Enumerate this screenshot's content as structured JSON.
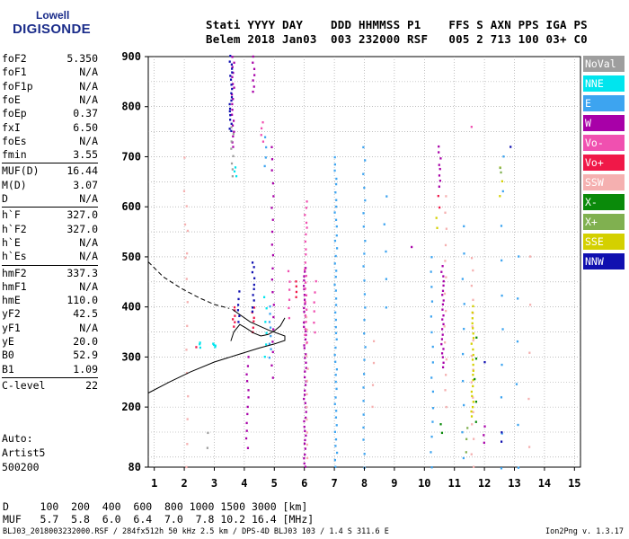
{
  "logo": {
    "line1": "Lowell",
    "line2": "DIGISONDE"
  },
  "header": {
    "labels": [
      "Stati",
      "YYYY",
      "DAY",
      "DDD",
      "HHMMSS",
      "P1",
      "FFS",
      "S",
      "AXN",
      "PPS",
      "IGA",
      "PS"
    ],
    "values": [
      "Belem",
      "2018",
      "Jan03",
      "003",
      "232000",
      "RSF",
      "005",
      "2",
      "713",
      "100",
      "03+",
      "C0"
    ]
  },
  "params": [
    {
      "name": "foF2",
      "value": "5.350"
    },
    {
      "name": "foF1",
      "value": "N/A"
    },
    {
      "name": "foF1p",
      "value": "N/A"
    },
    {
      "name": "foE",
      "value": "N/A"
    },
    {
      "name": "foEp",
      "value": "0.37"
    },
    {
      "name": "fxI",
      "value": "6.50"
    },
    {
      "name": "foEs",
      "value": "N/A"
    },
    {
      "name": "fmin",
      "value": "3.55"
    },
    {
      "name": "MUF(D)",
      "value": "16.44",
      "sep": true
    },
    {
      "name": "M(D)",
      "value": "3.07"
    },
    {
      "name": "D",
      "value": "N/A"
    },
    {
      "name": "h`F",
      "value": "327.0",
      "sep": true
    },
    {
      "name": "h`F2",
      "value": "327.0"
    },
    {
      "name": "h`E",
      "value": "N/A"
    },
    {
      "name": "h`Es",
      "value": "N/A"
    },
    {
      "name": "hmF2",
      "value": "337.3",
      "sep": true
    },
    {
      "name": "hmF1",
      "value": "N/A"
    },
    {
      "name": "hmE",
      "value": "110.0"
    },
    {
      "name": "yF2",
      "value": "42.5"
    },
    {
      "name": "yF1",
      "value": "N/A"
    },
    {
      "name": "yE",
      "value": "20.0"
    },
    {
      "name": "B0",
      "value": "52.9"
    },
    {
      "name": "B1",
      "value": "1.09"
    },
    {
      "name": "C-level",
      "value": "22",
      "sep": true
    }
  ],
  "auto": {
    "line1": "Auto:",
    "line2": "Artist5",
    "line3": "500200"
  },
  "legend": [
    {
      "label": "NoVal",
      "color": "#9e9e9e"
    },
    {
      "label": "NNE",
      "color": "#00e5ee"
    },
    {
      "label": "E",
      "color": "#3da4f0"
    },
    {
      "label": "W",
      "color": "#a800a8"
    },
    {
      "label": "Vo-",
      "color": "#f050b0"
    },
    {
      "label": "Vo+",
      "color": "#f01848"
    },
    {
      "label": "SSW",
      "color": "#f5b0b0"
    },
    {
      "label": "X-",
      "color": "#0a8a0a"
    },
    {
      "label": "X+",
      "color": "#80b050"
    },
    {
      "label": "SSE",
      "color": "#d4d000"
    },
    {
      "label": "NNW",
      "color": "#1010b0"
    }
  ],
  "footer": {
    "d_line": "D     100  200  400  600  800 1000 1500 3000 [km]",
    "muf_line": "MUF   5.7  5.8  6.0  6.4  7.0  7.8 10.2 16.4 [MHz]",
    "file_line": "BLJ03_2018003232000.RSF / 284fx512h 50 kHz 2.5 km / DPS-4D BLJ03 103 / 1.4 S 311.6 E",
    "version": "Ion2Png v. 1.3.17"
  },
  "chart_data": {
    "type": "scatter",
    "title": "",
    "xlabel": "",
    "ylabel": "",
    "xlim": [
      0.8,
      15.2
    ],
    "ylim": [
      80,
      900
    ],
    "x_ticks": [
      1,
      2,
      3,
      4,
      5,
      6,
      7,
      8,
      9,
      10,
      11,
      12,
      13,
      14,
      15
    ],
    "y_ticks": [
      80,
      200,
      300,
      400,
      500,
      600,
      700,
      800,
      900
    ],
    "grid": true,
    "traces": [
      {
        "name": "profile",
        "style": "solid",
        "x": [
          0.8,
          1.5,
          2.2,
          3.0,
          3.8,
          4.5,
          5.0,
          5.35,
          5.35,
          4.8,
          4.2,
          3.6
        ],
        "y": [
          228,
          250,
          270,
          290,
          305,
          318,
          326,
          333,
          342,
          354,
          370,
          395
        ]
      },
      {
        "name": "extrapolation",
        "style": "dashed",
        "x": [
          0.8,
          1.3,
          1.9,
          2.5,
          3.0,
          3.5
        ],
        "y": [
          490,
          460,
          437,
          418,
          405,
          397
        ]
      },
      {
        "name": "trace",
        "style": "solid",
        "x": [
          3.55,
          3.65,
          3.85,
          4.05,
          4.3,
          4.55,
          4.8,
          5.0,
          5.2,
          5.35
        ],
        "y": [
          332,
          350,
          365,
          358,
          348,
          342,
          345,
          352,
          362,
          378
        ]
      }
    ],
    "points": [
      {
        "s": "W",
        "x": 3.62,
        "y0": 720,
        "y1": 900,
        "n": 18
      },
      {
        "s": "W",
        "x": 4.3,
        "y0": 830,
        "y1": 900,
        "n": 7
      },
      {
        "s": "W",
        "x": 6.02,
        "y0": 80,
        "y1": 480,
        "n": 45
      },
      {
        "s": "W",
        "x": 10.6,
        "y0": 280,
        "y1": 480,
        "n": 22
      },
      {
        "s": "W",
        "x": 10.5,
        "y0": 640,
        "y1": 720,
        "n": 8
      },
      {
        "s": "W",
        "x": 4.95,
        "y0": 260,
        "y1": 720,
        "n": 20
      },
      {
        "s": "W",
        "x": 4.1,
        "y0": 120,
        "y1": 300,
        "n": 12
      },
      {
        "s": "W",
        "x": 12.0,
        "y0": 130,
        "y1": 160,
        "n": 3
      },
      {
        "s": "W",
        "x": 9.55,
        "y0": 520,
        "y1": 525,
        "n": 1
      },
      {
        "s": "E",
        "x": 7.05,
        "y0": 80,
        "y1": 700,
        "n": 45
      },
      {
        "s": "E",
        "x": 8.0,
        "y0": 80,
        "y1": 720,
        "n": 25
      },
      {
        "s": "E",
        "x": 10.25,
        "y0": 80,
        "y1": 500,
        "n": 15
      },
      {
        "s": "E",
        "x": 11.3,
        "y0": 100,
        "y1": 560,
        "n": 10
      },
      {
        "s": "E",
        "x": 12.6,
        "y0": 80,
        "y1": 700,
        "n": 10
      },
      {
        "s": "E",
        "x": 13.1,
        "y0": 80,
        "y1": 500,
        "n": 6
      },
      {
        "s": "E",
        "x": 4.7,
        "y0": 680,
        "y1": 740,
        "n": 4
      },
      {
        "s": "E",
        "x": 4.85,
        "y0": 300,
        "y1": 400,
        "n": 8
      },
      {
        "s": "E",
        "x": 8.7,
        "y0": 400,
        "y1": 620,
        "n": 5
      },
      {
        "s": "SSW",
        "x": 6.1,
        "y0": 100,
        "y1": 380,
        "n": 12
      },
      {
        "s": "SSW",
        "x": 10.7,
        "y0": 200,
        "y1": 620,
        "n": 14
      },
      {
        "s": "SSW",
        "x": 11.6,
        "y0": 80,
        "y1": 500,
        "n": 16
      },
      {
        "s": "SSW",
        "x": 2.1,
        "y0": 80,
        "y1": 600,
        "n": 12
      },
      {
        "s": "SSW",
        "x": 2.0,
        "y0": 500,
        "y1": 700,
        "n": 4
      },
      {
        "s": "SSW",
        "x": 13.5,
        "y0": 120,
        "y1": 500,
        "n": 5
      },
      {
        "s": "SSW",
        "x": 8.3,
        "y0": 200,
        "y1": 330,
        "n": 4
      },
      {
        "s": "SSE",
        "x": 11.6,
        "y0": 180,
        "y1": 400,
        "n": 22
      },
      {
        "s": "SSE",
        "x": 12.55,
        "y0": 620,
        "y1": 680,
        "n": 3
      },
      {
        "s": "SSE",
        "x": 10.4,
        "y0": 560,
        "y1": 580,
        "n": 2
      },
      {
        "s": "Vo-",
        "x": 6.05,
        "y0": 330,
        "y1": 610,
        "n": 22
      },
      {
        "s": "Vo-",
        "x": 6.35,
        "y0": 350,
        "y1": 450,
        "n": 6
      },
      {
        "s": "Vo-",
        "x": 5.5,
        "y0": 380,
        "y1": 470,
        "n": 6
      },
      {
        "s": "Vo-",
        "x": 4.6,
        "y0": 730,
        "y1": 770,
        "n": 4
      },
      {
        "s": "Vo-",
        "x": 11.6,
        "y0": 760,
        "y1": 770,
        "n": 1
      },
      {
        "s": "Vo+",
        "x": 3.65,
        "y0": 360,
        "y1": 400,
        "n": 6
      },
      {
        "s": "Vo+",
        "x": 4.3,
        "y0": 350,
        "y1": 400,
        "n": 6
      },
      {
        "s": "Vo+",
        "x": 5.7,
        "y0": 420,
        "y1": 450,
        "n": 4
      },
      {
        "s": "Vo+",
        "x": 10.5,
        "y0": 600,
        "y1": 620,
        "n": 2
      },
      {
        "s": "Vo+",
        "x": 2.4,
        "y0": 320,
        "y1": 325,
        "n": 1
      },
      {
        "s": "NNW",
        "x": 3.55,
        "y0": 750,
        "y1": 900,
        "n": 20
      },
      {
        "s": "NNW",
        "x": 4.3,
        "y0": 390,
        "y1": 490,
        "n": 10
      },
      {
        "s": "NNW",
        "x": 3.8,
        "y0": 370,
        "y1": 430,
        "n": 6
      },
      {
        "s": "NNW",
        "x": 12.6,
        "y0": 130,
        "y1": 150,
        "n": 2
      },
      {
        "s": "NNW",
        "x": 12.0,
        "y0": 290,
        "y1": 295,
        "n": 1
      },
      {
        "s": "NNW",
        "x": 12.9,
        "y0": 720,
        "y1": 725,
        "n": 1
      },
      {
        "s": "NNE",
        "x": 3.0,
        "y0": 322,
        "y1": 328,
        "n": 4
      },
      {
        "s": "NNE",
        "x": 4.7,
        "y0": 300,
        "y1": 420,
        "n": 6
      },
      {
        "s": "NNE",
        "x": 3.7,
        "y0": 660,
        "y1": 680,
        "n": 3
      },
      {
        "s": "NNE",
        "x": 2.5,
        "y0": 320,
        "y1": 330,
        "n": 3
      },
      {
        "s": "X-",
        "x": 11.7,
        "y0": 170,
        "y1": 340,
        "n": 5
      },
      {
        "s": "X-",
        "x": 10.55,
        "y0": 150,
        "y1": 165,
        "n": 2
      },
      {
        "s": "X+",
        "x": 11.4,
        "y0": 110,
        "y1": 160,
        "n": 3
      },
      {
        "s": "X+",
        "x": 12.55,
        "y0": 670,
        "y1": 680,
        "n": 2
      },
      {
        "s": "NoVal",
        "x": 3.6,
        "y0": 660,
        "y1": 760,
        "n": 8
      },
      {
        "s": "NoVal",
        "x": 2.8,
        "y0": 120,
        "y1": 150,
        "n": 2
      }
    ]
  }
}
